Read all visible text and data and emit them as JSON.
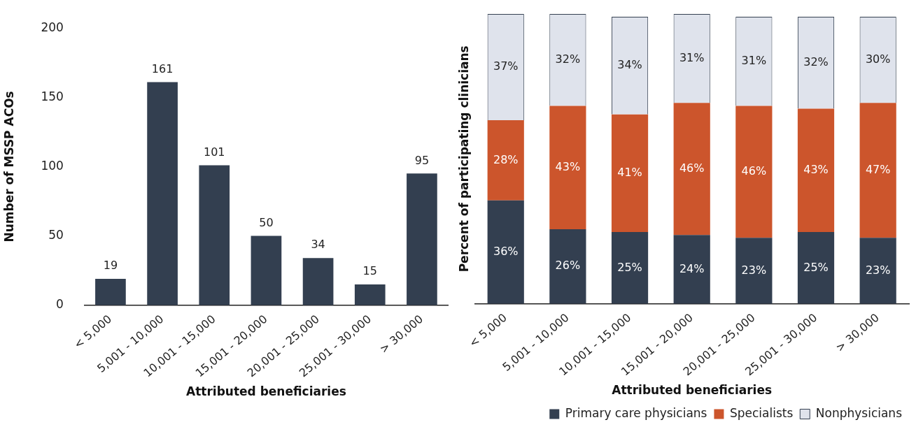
{
  "chart_data": [
    {
      "type": "bar",
      "xlabel": "Attributed beneficiaries",
      "ylabel": "Number of MSSP ACOs",
      "categories": [
        "< 5,000",
        "5,001 - 10,000",
        "10,001 - 15,000",
        "15,001 - 20,000",
        "20,001 - 25,000",
        "25,001 - 30,000",
        "> 30,000"
      ],
      "values": [
        19,
        161,
        101,
        50,
        34,
        15,
        95
      ],
      "color": "#333f50",
      "ylim": [
        0,
        200
      ],
      "yticks": [
        0,
        50,
        100,
        150,
        200
      ],
      "data_labels": true
    },
    {
      "type": "bar",
      "stacked": true,
      "xlabel": "Attributed beneficiaries",
      "ylabel": "Percent of participating clinicians",
      "categories": [
        "< 5,000",
        "5,001 - 10,000",
        "10,001 - 15,000",
        "15,001 - 20,000",
        "20,001 - 25,000",
        "25,001 - 30,000",
        "> 30,000"
      ],
      "series": [
        {
          "name": "Primary care physicians",
          "color": "#333f50",
          "values": [
            36,
            26,
            25,
            24,
            23,
            25,
            23
          ],
          "value_labels": [
            "36%",
            "26%",
            "25%",
            "24%",
            "23%",
            "25%",
            "23%"
          ]
        },
        {
          "name": "Specialists",
          "color": "#cc552c",
          "values": [
            28,
            43,
            41,
            46,
            46,
            43,
            47
          ],
          "value_labels": [
            "28%",
            "43%",
            "41%",
            "46%",
            "46%",
            "43%",
            "47%"
          ]
        },
        {
          "name": "Nonphysicians",
          "color": "#dfe3ec",
          "values": [
            37,
            32,
            34,
            31,
            31,
            32,
            30
          ],
          "value_labels": [
            "37%",
            "32%",
            "34%",
            "31%",
            "31%",
            "32%",
            "30%"
          ]
        }
      ],
      "legend": "bottom",
      "tick_labels": "x"
    }
  ]
}
